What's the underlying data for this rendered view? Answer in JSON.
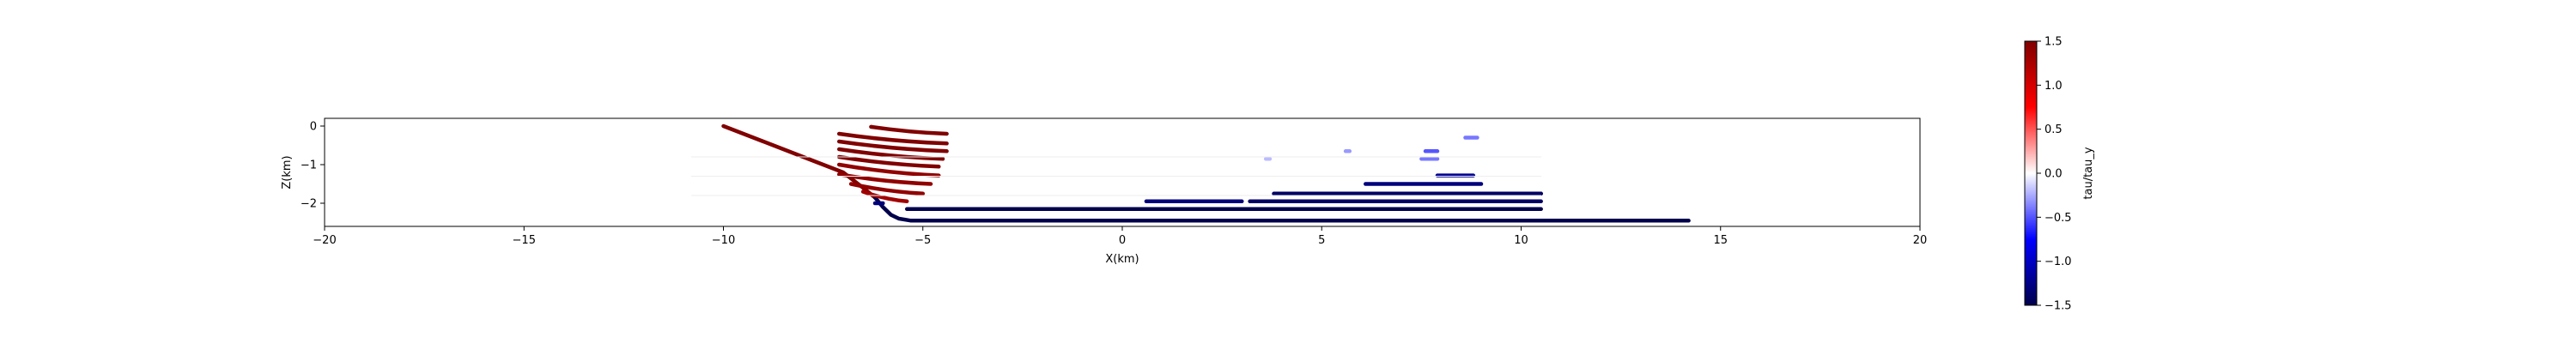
{
  "chart_data": {
    "type": "scatter",
    "title": "",
    "xlabel": "X(km)",
    "ylabel": "Z(km)",
    "xlim": [
      -20,
      20
    ],
    "ylim": [
      -2.6,
      0.2
    ],
    "xticks": [
      "−20",
      "−15",
      "−10",
      "−5",
      "0",
      "5",
      "10",
      "15",
      "20"
    ],
    "xtick_values": [
      -20,
      -15,
      -10,
      -5,
      0,
      5,
      10,
      15,
      20
    ],
    "yticks": [
      "0",
      "−1",
      "−2"
    ],
    "ytick_values": [
      0,
      -1,
      -2
    ],
    "grid": false,
    "colormap": "seismic",
    "colorbar": {
      "label": "tau/tau_y",
      "range": [
        -1.5,
        1.5
      ],
      "ticks": [
        "1.5",
        "1.0",
        "0.5",
        "0.0",
        "−0.5",
        "−1.0",
        "−1.5"
      ],
      "tick_values": [
        1.5,
        1.0,
        0.5,
        0.0,
        -0.5,
        -1.0,
        -1.5
      ]
    },
    "series": [
      {
        "kind": "line",
        "value": 1.5,
        "points": [
          [
            -10,
            0
          ],
          [
            -9,
            -0.4
          ],
          [
            -8,
            -0.8
          ],
          [
            -7,
            -1.2
          ],
          [
            -6.5,
            -1.6
          ],
          [
            -6.2,
            -1.85
          ]
        ]
      },
      {
        "kind": "line",
        "value": -1.5,
        "points": [
          [
            -6.2,
            -1.85
          ],
          [
            -6.0,
            -2.1
          ],
          [
            -5.8,
            -2.3
          ],
          [
            -5.6,
            -2.4
          ],
          [
            -5.3,
            -2.45
          ],
          [
            14.2,
            -2.45
          ]
        ]
      },
      {
        "kind": "segment",
        "value": 1.5,
        "x": [
          -6.3,
          -4.4
        ],
        "z": [
          -0.02,
          -0.2
        ]
      },
      {
        "kind": "segment",
        "value": 1.5,
        "x": [
          -7.1,
          -4.4
        ],
        "z": [
          -0.2,
          -0.45
        ]
      },
      {
        "kind": "segment",
        "value": 1.5,
        "x": [
          -7.1,
          -4.4
        ],
        "z": [
          -0.4,
          -0.65
        ]
      },
      {
        "kind": "segment",
        "value": 1.5,
        "x": [
          -7.1,
          -4.5
        ],
        "z": [
          -0.6,
          -0.85
        ]
      },
      {
        "kind": "segment",
        "value": 1.5,
        "x": [
          -7.1,
          -4.6
        ],
        "z": [
          -0.8,
          -1.05
        ]
      },
      {
        "kind": "segment",
        "value": 1.4,
        "x": [
          -7.1,
          -4.6
        ],
        "z": [
          -1.0,
          -1.28
        ]
      },
      {
        "kind": "segment",
        "value": 1.4,
        "x": [
          -7.1,
          -4.8
        ],
        "z": [
          -1.25,
          -1.5
        ]
      },
      {
        "kind": "segment",
        "value": 1.4,
        "x": [
          -6.8,
          -5.0
        ],
        "z": [
          -1.5,
          -1.75
        ]
      },
      {
        "kind": "segment",
        "value": 1.3,
        "x": [
          -6.5,
          -5.4
        ],
        "z": [
          -1.7,
          -1.95
        ]
      },
      {
        "kind": "segment",
        "value": -1.3,
        "x": [
          -6.2,
          -6.0
        ],
        "z": [
          -2.0,
          -2.0
        ]
      },
      {
        "kind": "segment",
        "value": -1.5,
        "x": [
          -5.4,
          10.5
        ],
        "z": [
          -2.15,
          -2.15
        ]
      },
      {
        "kind": "segment",
        "value": -1.4,
        "x": [
          3.2,
          10.5
        ],
        "z": [
          -1.95,
          -1.95
        ]
      },
      {
        "kind": "segment",
        "value": -1.3,
        "x": [
          0.6,
          3.0
        ],
        "z": [
          -1.95,
          -1.95
        ]
      },
      {
        "kind": "segment",
        "value": -1.4,
        "x": [
          3.8,
          10.5
        ],
        "z": [
          -1.75,
          -1.75
        ]
      },
      {
        "kind": "segment",
        "value": -1.3,
        "x": [
          6.1,
          9.0
        ],
        "z": [
          -1.5,
          -1.5
        ]
      },
      {
        "kind": "segment",
        "value": -1.2,
        "x": [
          7.9,
          8.8
        ],
        "z": [
          -1.28,
          -1.28
        ]
      },
      {
        "kind": "segment",
        "value": -0.4,
        "x": [
          7.5,
          7.9
        ],
        "z": [
          -0.85,
          -0.85
        ]
      },
      {
        "kind": "segment",
        "value": -0.5,
        "x": [
          7.6,
          7.9
        ],
        "z": [
          -0.65,
          -0.65
        ]
      },
      {
        "kind": "segment",
        "value": -0.4,
        "x": [
          8.6,
          8.9
        ],
        "z": [
          -0.3,
          -0.3
        ]
      },
      {
        "kind": "segment",
        "value": -0.3,
        "x": [
          5.6,
          5.7
        ],
        "z": [
          -0.65,
          -0.65
        ]
      },
      {
        "kind": "segment",
        "value": -0.2,
        "x": [
          3.6,
          3.7
        ],
        "z": [
          -0.85,
          -0.85
        ]
      },
      {
        "kind": "segment",
        "value": -1.4,
        "x": [
          10.0,
          10.5
        ],
        "z": [
          -1.75,
          -1.75
        ]
      },
      {
        "kind": "segment",
        "value": 0.05,
        "x": [
          -10.8,
          10.5
        ],
        "z": [
          -0.8,
          -0.8
        ]
      },
      {
        "kind": "segment",
        "value": 0.05,
        "x": [
          -10.8,
          10.5
        ],
        "z": [
          -1.3,
          -1.3
        ]
      },
      {
        "kind": "segment",
        "value": 0.05,
        "x": [
          -10.8,
          10.5
        ],
        "z": [
          -1.8,
          -1.8
        ]
      }
    ]
  }
}
